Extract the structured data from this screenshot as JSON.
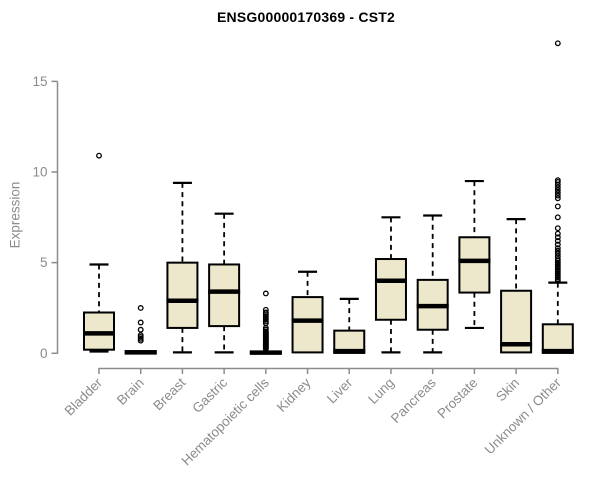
{
  "chart_data": {
    "type": "box",
    "title": "ENSG00000170369 - CST2",
    "ylabel": "Expression",
    "xlabel": "",
    "yticks": [
      0,
      5,
      10,
      15
    ],
    "ylim": [
      0,
      17.5
    ],
    "grid": false,
    "legend": "none",
    "colors": {
      "box_fill": "#EDE7CB",
      "box_stroke": "#000000",
      "median": "#000000",
      "axis": "#8C8C8C",
      "tick_label": "#8C8C8C",
      "title": "#000000",
      "background": "#FFFFFF"
    },
    "categories": [
      "Bladder",
      "Brain",
      "Breast",
      "Gastric",
      "Hematopoietic cells",
      "Kidney",
      "Liver",
      "Lung",
      "Pancreas",
      "Prostate",
      "Skin",
      "Unknown / Other"
    ],
    "boxes": [
      {
        "name": "Bladder",
        "whisker_low": 0.1,
        "q1": 0.2,
        "median": 1.1,
        "q3": 2.25,
        "whisker_high": 4.9,
        "outliers": [
          10.9
        ]
      },
      {
        "name": "Brain",
        "whisker_low": 0.0,
        "q1": 0.0,
        "median": 0.05,
        "q3": 0.12,
        "whisker_high": 0.12,
        "outliers": [
          0.7,
          0.8,
          0.9,
          1.0,
          1.3,
          1.7,
          2.5
        ]
      },
      {
        "name": "Breast",
        "whisker_low": 0.05,
        "q1": 1.4,
        "median": 2.9,
        "q3": 5.0,
        "whisker_high": 9.4,
        "outliers": []
      },
      {
        "name": "Gastric",
        "whisker_low": 0.05,
        "q1": 1.5,
        "median": 3.4,
        "q3": 4.9,
        "whisker_high": 7.7,
        "outliers": []
      },
      {
        "name": "Hematopoietic cells",
        "whisker_low": 0.0,
        "q1": 0.0,
        "median": 0.04,
        "q3": 0.1,
        "whisker_high": 0.1,
        "outliers": [
          0.25,
          0.3,
          0.35,
          0.4,
          0.45,
          0.5,
          0.55,
          0.6,
          0.65,
          0.7,
          0.75,
          0.8,
          0.85,
          0.9,
          0.95,
          1.0,
          1.05,
          1.1,
          1.15,
          1.2,
          1.3,
          1.4,
          1.65,
          1.75,
          1.85,
          1.95,
          2.05,
          2.15,
          2.25,
          2.4,
          3.3
        ]
      },
      {
        "name": "Kidney",
        "whisker_low": 0.0,
        "q1": 0.05,
        "median": 1.8,
        "q3": 3.1,
        "whisker_high": 4.5,
        "outliers": []
      },
      {
        "name": "Liver",
        "whisker_low": 0.0,
        "q1": 0.02,
        "median": 0.12,
        "q3": 1.25,
        "whisker_high": 3.0,
        "outliers": []
      },
      {
        "name": "Lung",
        "whisker_low": 0.05,
        "q1": 1.85,
        "median": 4.0,
        "q3": 5.2,
        "whisker_high": 7.5,
        "outliers": []
      },
      {
        "name": "Pancreas",
        "whisker_low": 0.05,
        "q1": 1.3,
        "median": 2.6,
        "q3": 4.05,
        "whisker_high": 7.6,
        "outliers": []
      },
      {
        "name": "Prostate",
        "whisker_low": 1.4,
        "q1": 3.35,
        "median": 5.1,
        "q3": 6.4,
        "whisker_high": 9.5,
        "outliers": []
      },
      {
        "name": "Skin",
        "whisker_low": 0.03,
        "q1": 0.05,
        "median": 0.5,
        "q3": 3.45,
        "whisker_high": 7.4,
        "outliers": []
      },
      {
        "name": "Unknown / Other",
        "whisker_low": 0.0,
        "q1": 0.02,
        "median": 0.12,
        "q3": 1.6,
        "whisker_high": 3.9,
        "outliers": [
          4.0,
          4.1,
          4.2,
          4.3,
          4.4,
          4.5,
          4.6,
          4.7,
          4.8,
          4.9,
          5.0,
          5.1,
          5.2,
          5.35,
          5.5,
          5.65,
          5.8,
          6.0,
          6.2,
          6.4,
          6.6,
          6.9,
          7.5,
          8.1,
          8.55,
          8.7,
          8.85,
          9.0,
          9.15,
          9.3,
          9.45,
          9.55,
          17.1
        ]
      }
    ]
  }
}
